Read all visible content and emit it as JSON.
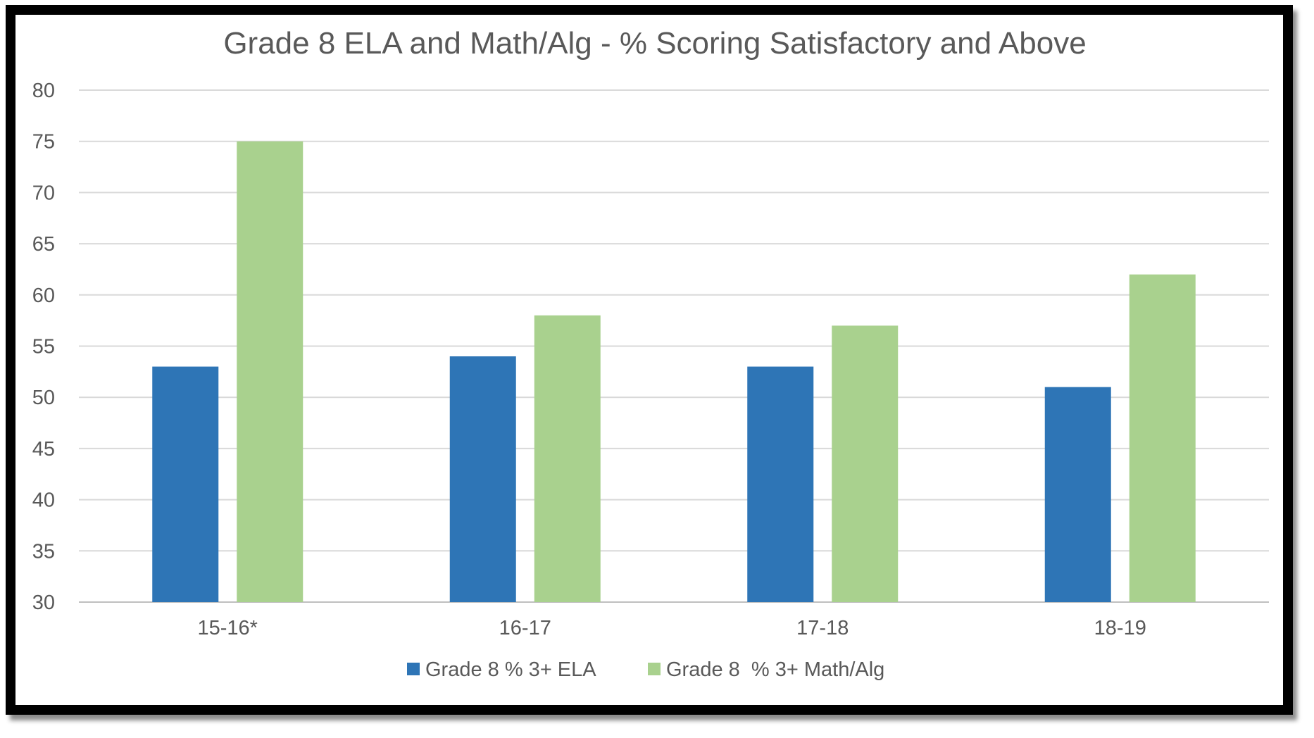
{
  "chart_data": {
    "type": "bar",
    "title": "Grade 8 ELA and Math/Alg - % Scoring Satisfactory and Above",
    "categories": [
      "15-16*",
      "16-17",
      "17-18",
      "18-19"
    ],
    "series": [
      {
        "name": "Grade 8 % 3+ ELA",
        "color": "#2E75B6",
        "values": [
          53,
          54,
          53,
          51
        ]
      },
      {
        "name": "Grade 8  % 3+ Math/Alg",
        "color": "#A9D18E",
        "values": [
          75,
          58,
          57,
          62
        ]
      }
    ],
    "ylim": [
      30,
      80
    ],
    "yticks": [
      30,
      35,
      40,
      45,
      50,
      55,
      60,
      65,
      70,
      75,
      80
    ],
    "xlabel": "",
    "ylabel": "",
    "grid": true,
    "legend": "bottom"
  }
}
